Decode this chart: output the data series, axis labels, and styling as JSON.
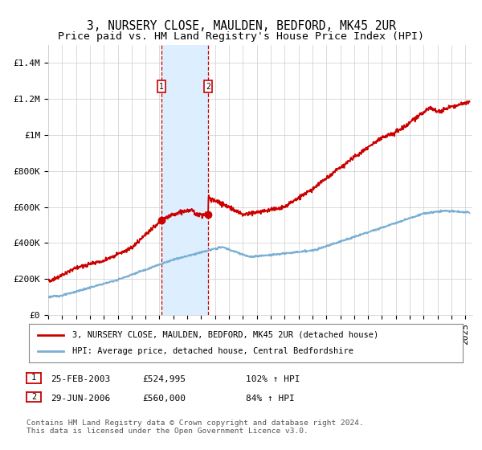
{
  "title": "3, NURSERY CLOSE, MAULDEN, BEDFORD, MK45 2UR",
  "subtitle": "Price paid vs. HM Land Registry's House Price Index (HPI)",
  "ylim": [
    0,
    1500000
  ],
  "yticks": [
    0,
    200000,
    400000,
    600000,
    800000,
    1000000,
    1200000,
    1400000
  ],
  "ytick_labels": [
    "£0",
    "£200K",
    "£400K",
    "£600K",
    "£800K",
    "£1M",
    "£1.2M",
    "£1.4M"
  ],
  "xlim_start": 1995.0,
  "xlim_end": 2025.5,
  "sale1_x": 2003.145,
  "sale1_y": 524995,
  "sale1_label": "1",
  "sale1_date": "25-FEB-2003",
  "sale1_price": "£524,995",
  "sale1_hpi": "102% ↑ HPI",
  "sale2_x": 2006.495,
  "sale2_y": 560000,
  "sale2_label": "2",
  "sale2_date": "29-JUN-2006",
  "sale2_price": "£560,000",
  "sale2_hpi": "84% ↑ HPI",
  "property_color": "#cc0000",
  "hpi_color": "#7aafd4",
  "shade_color": "#ddeeff",
  "grid_color": "#cccccc",
  "legend_property": "3, NURSERY CLOSE, MAULDEN, BEDFORD, MK45 2UR (detached house)",
  "legend_hpi": "HPI: Average price, detached house, Central Bedfordshire",
  "footnote": "Contains HM Land Registry data © Crown copyright and database right 2024.\nThis data is licensed under the Open Government Licence v3.0.",
  "title_fontsize": 10.5,
  "tick_fontsize": 8,
  "legend_fontsize": 8
}
